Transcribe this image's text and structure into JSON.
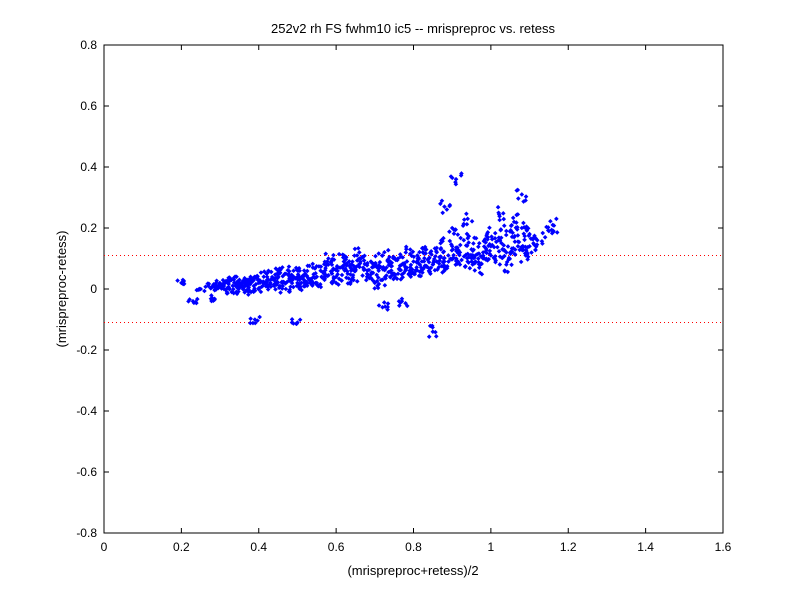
{
  "chart_data": {
    "type": "scatter",
    "title": "252v2 rh FS fwhm10 ic5 -- mrispreproc vs. retess",
    "xlabel": "(mrispreproc+retess)/2",
    "ylabel": "(mrispreproc-retess)",
    "xlim": [
      0,
      1.6
    ],
    "ylim": [
      -0.8,
      0.8
    ],
    "xticks": [
      "0",
      "0.2",
      "0.4",
      "0.6",
      "0.8",
      "1",
      "1.2",
      "1.4",
      "1.6"
    ],
    "yticks": [
      "-0.8",
      "-0.6",
      "-0.4",
      "-0.2",
      "0",
      "0.2",
      "0.4",
      "0.6",
      "0.8"
    ],
    "grid": false,
    "series": [
      {
        "color": "#0000ff",
        "marker": "diamond",
        "x": [
          0.2,
          0.23,
          0.25,
          0.27,
          0.28,
          0.29,
          0.3,
          0.31,
          0.32,
          0.33,
          0.34,
          0.35,
          0.36,
          0.37,
          0.38,
          0.38,
          0.39,
          0.4,
          0.41,
          0.42,
          0.43,
          0.44,
          0.45,
          0.46,
          0.47,
          0.48,
          0.49,
          0.5,
          0.51,
          0.52,
          0.53,
          0.54,
          0.55,
          0.56,
          0.57,
          0.58,
          0.59,
          0.6,
          0.61,
          0.62,
          0.63,
          0.64,
          0.65,
          0.66,
          0.67,
          0.68,
          0.69,
          0.7,
          0.71,
          0.72,
          0.73,
          0.74,
          0.75,
          0.76,
          0.77,
          0.78,
          0.79,
          0.8,
          0.81,
          0.82,
          0.83,
          0.84,
          0.85,
          0.86,
          0.87,
          0.88,
          0.89,
          0.9,
          0.91,
          0.92,
          0.93,
          0.94,
          0.95,
          0.96,
          0.97,
          0.98,
          0.99,
          1.0,
          1.01,
          1.02,
          1.03,
          1.04,
          1.05,
          1.06,
          1.07,
          1.08,
          1.09,
          1.1,
          1.11,
          1.12,
          1.15,
          1.16,
          0.29,
          0.31,
          0.33,
          0.35,
          0.36,
          0.37,
          0.4,
          0.42,
          0.44,
          0.45,
          0.47,
          0.49,
          0.5,
          0.52,
          0.55,
          0.57,
          0.58,
          0.6,
          0.62,
          0.64,
          0.66,
          0.68,
          0.7,
          0.72,
          0.74,
          0.76,
          0.78,
          0.8,
          0.82,
          0.84,
          0.86,
          0.88,
          0.9,
          0.92,
          0.94,
          0.96,
          0.98,
          1.0,
          1.02,
          1.04,
          1.06,
          1.08,
          1.1,
          0.91,
          1.08,
          0.85,
          0.39,
          0.5,
          0.72,
          0.77,
          0.88,
          0.97,
          1.04
        ],
        "y": [
          0.02,
          -0.04,
          0.0,
          0.01,
          -0.03,
          0.02,
          0.01,
          0.0,
          0.02,
          0.03,
          0.01,
          0.02,
          0.0,
          0.03,
          0.02,
          -0.01,
          0.04,
          0.03,
          0.01,
          0.05,
          0.02,
          0.03,
          0.04,
          0.02,
          0.05,
          0.03,
          0.06,
          0.04,
          0.02,
          0.05,
          0.03,
          0.07,
          0.04,
          0.06,
          0.05,
          0.08,
          0.06,
          0.04,
          0.07,
          0.09,
          0.05,
          0.08,
          0.06,
          0.1,
          0.07,
          0.05,
          0.09,
          0.08,
          0.06,
          0.11,
          0.07,
          0.09,
          0.05,
          0.1,
          0.08,
          0.12,
          0.06,
          0.09,
          0.11,
          0.07,
          0.13,
          0.1,
          0.08,
          0.12,
          0.15,
          0.09,
          0.11,
          0.14,
          0.1,
          0.12,
          0.16,
          0.09,
          0.13,
          0.11,
          0.15,
          0.12,
          0.18,
          0.14,
          0.1,
          0.16,
          0.13,
          0.19,
          0.12,
          0.17,
          0.14,
          0.2,
          0.11,
          0.18,
          0.15,
          0.16,
          0.19,
          0.21,
          0.0,
          0.01,
          -0.01,
          0.03,
          0.0,
          0.02,
          0.0,
          0.02,
          0.01,
          0.06,
          0.0,
          0.04,
          0.02,
          0.01,
          0.02,
          0.03,
          0.1,
          0.02,
          0.11,
          0.03,
          0.12,
          0.04,
          0.02,
          0.03,
          0.04,
          0.05,
          0.07,
          0.05,
          0.06,
          0.06,
          0.09,
          0.07,
          0.2,
          0.08,
          0.23,
          0.09,
          0.1,
          0.11,
          0.25,
          0.12,
          0.22,
          0.13,
          0.14,
          0.36,
          0.31,
          -0.14,
          -0.1,
          -0.11,
          -0.06,
          -0.04,
          0.27,
          0.07,
          0.08
        ]
      }
    ],
    "reference_lines": [
      {
        "y": 0.11,
        "style": "dotted",
        "color": "#ff0000"
      },
      {
        "y": -0.11,
        "style": "dotted",
        "color": "#ff0000"
      }
    ]
  }
}
